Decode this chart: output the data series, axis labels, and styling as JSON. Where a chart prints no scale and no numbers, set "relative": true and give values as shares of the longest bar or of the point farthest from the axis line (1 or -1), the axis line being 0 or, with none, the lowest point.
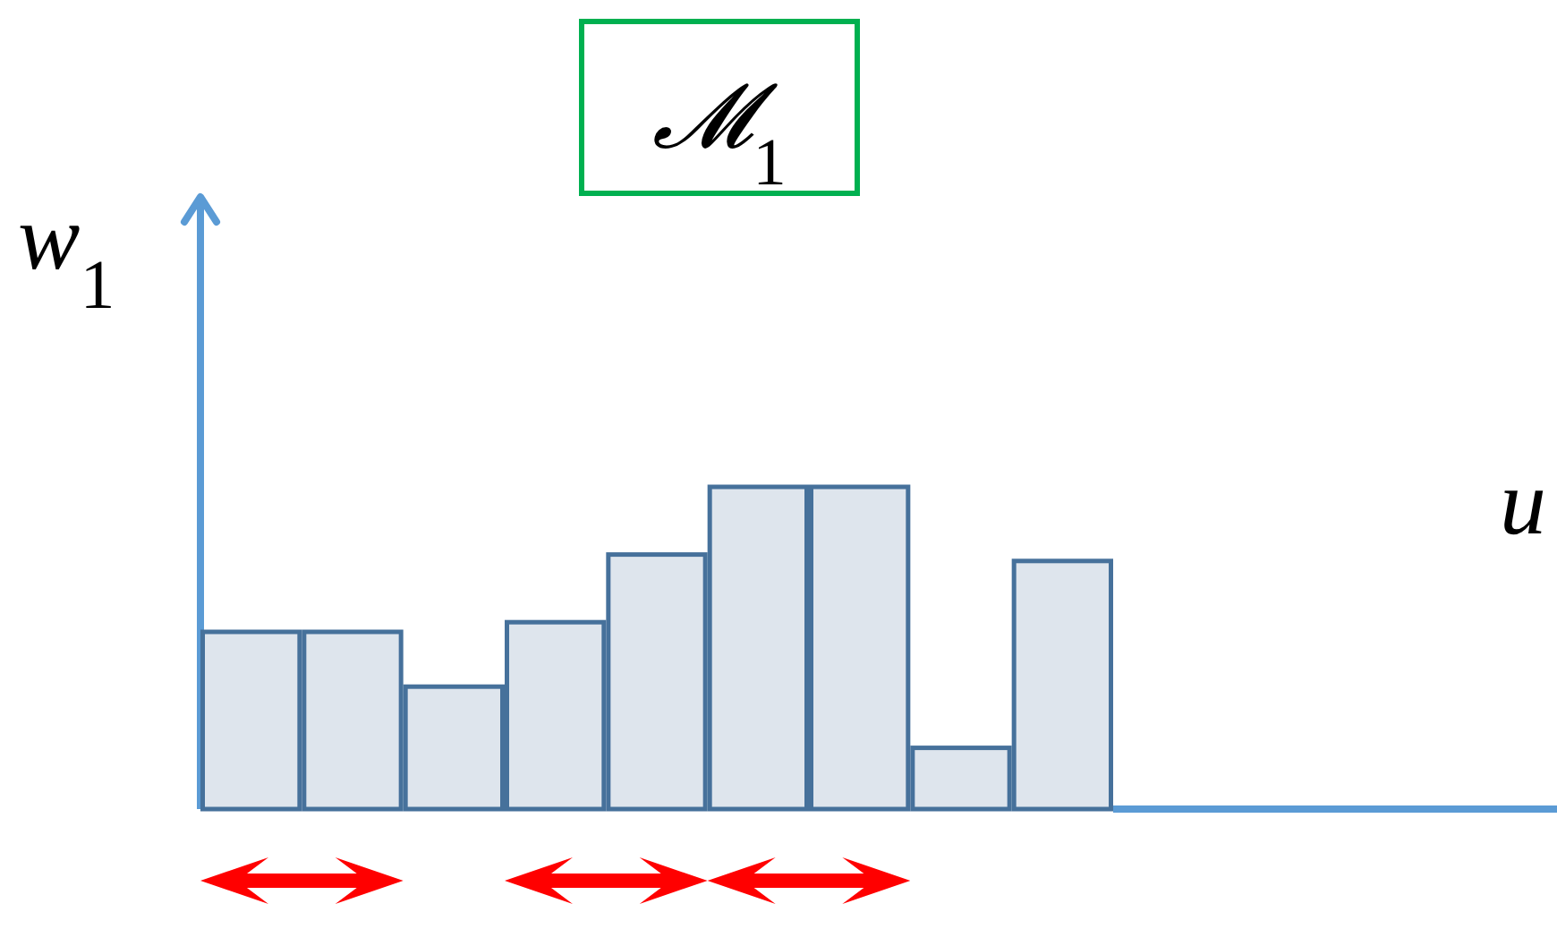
{
  "chart_data": {
    "type": "bar",
    "title": "𝓜$_{1}$",
    "ylabel": "w$_{1}$",
    "xlabel": "u",
    "relative": true,
    "categories": [
      null,
      null,
      null,
      null,
      null,
      null,
      null,
      null,
      null
    ],
    "series": [
      {
        "color": "#46719b",
        "values": [
          0.55,
          0.55,
          0.38,
          0.58,
          0.79,
          1,
          1,
          0.19,
          0.77
        ]
      }
    ]
  }
}
